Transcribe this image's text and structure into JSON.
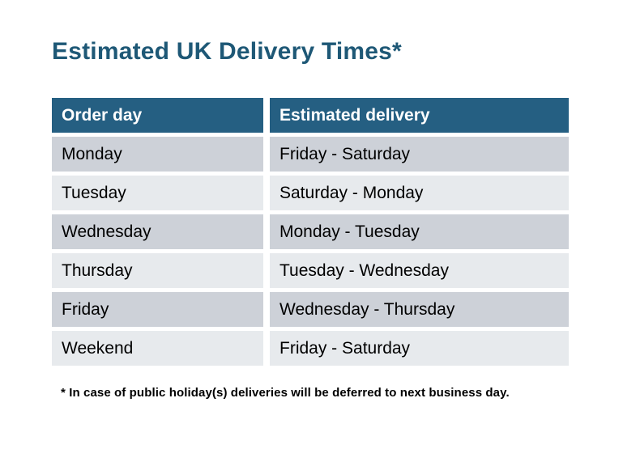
{
  "title": "Estimated UK Delivery Times*",
  "table": {
    "headers": [
      "Order day",
      "Estimated delivery"
    ],
    "rows": [
      [
        "Monday",
        "Friday - Saturday"
      ],
      [
        "Tuesday",
        "Saturday - Monday"
      ],
      [
        "Wednesday",
        "Monday - Tuesday"
      ],
      [
        "Thursday",
        "Tuesday - Wednesday"
      ],
      [
        "Friday",
        "Wednesday - Thursday"
      ],
      [
        "Weekend",
        "Friday - Saturday"
      ]
    ]
  },
  "footnote": "* In case of public holiday(s) deliveries will be deferred to next business day.",
  "colors": {
    "title_text": "#1E5876",
    "header_bg": "#255F82",
    "header_text": "#FFFFFF",
    "row_odd_bg": "#CDD1D8",
    "row_even_bg": "#E7EAED",
    "body_text": "#000000"
  }
}
